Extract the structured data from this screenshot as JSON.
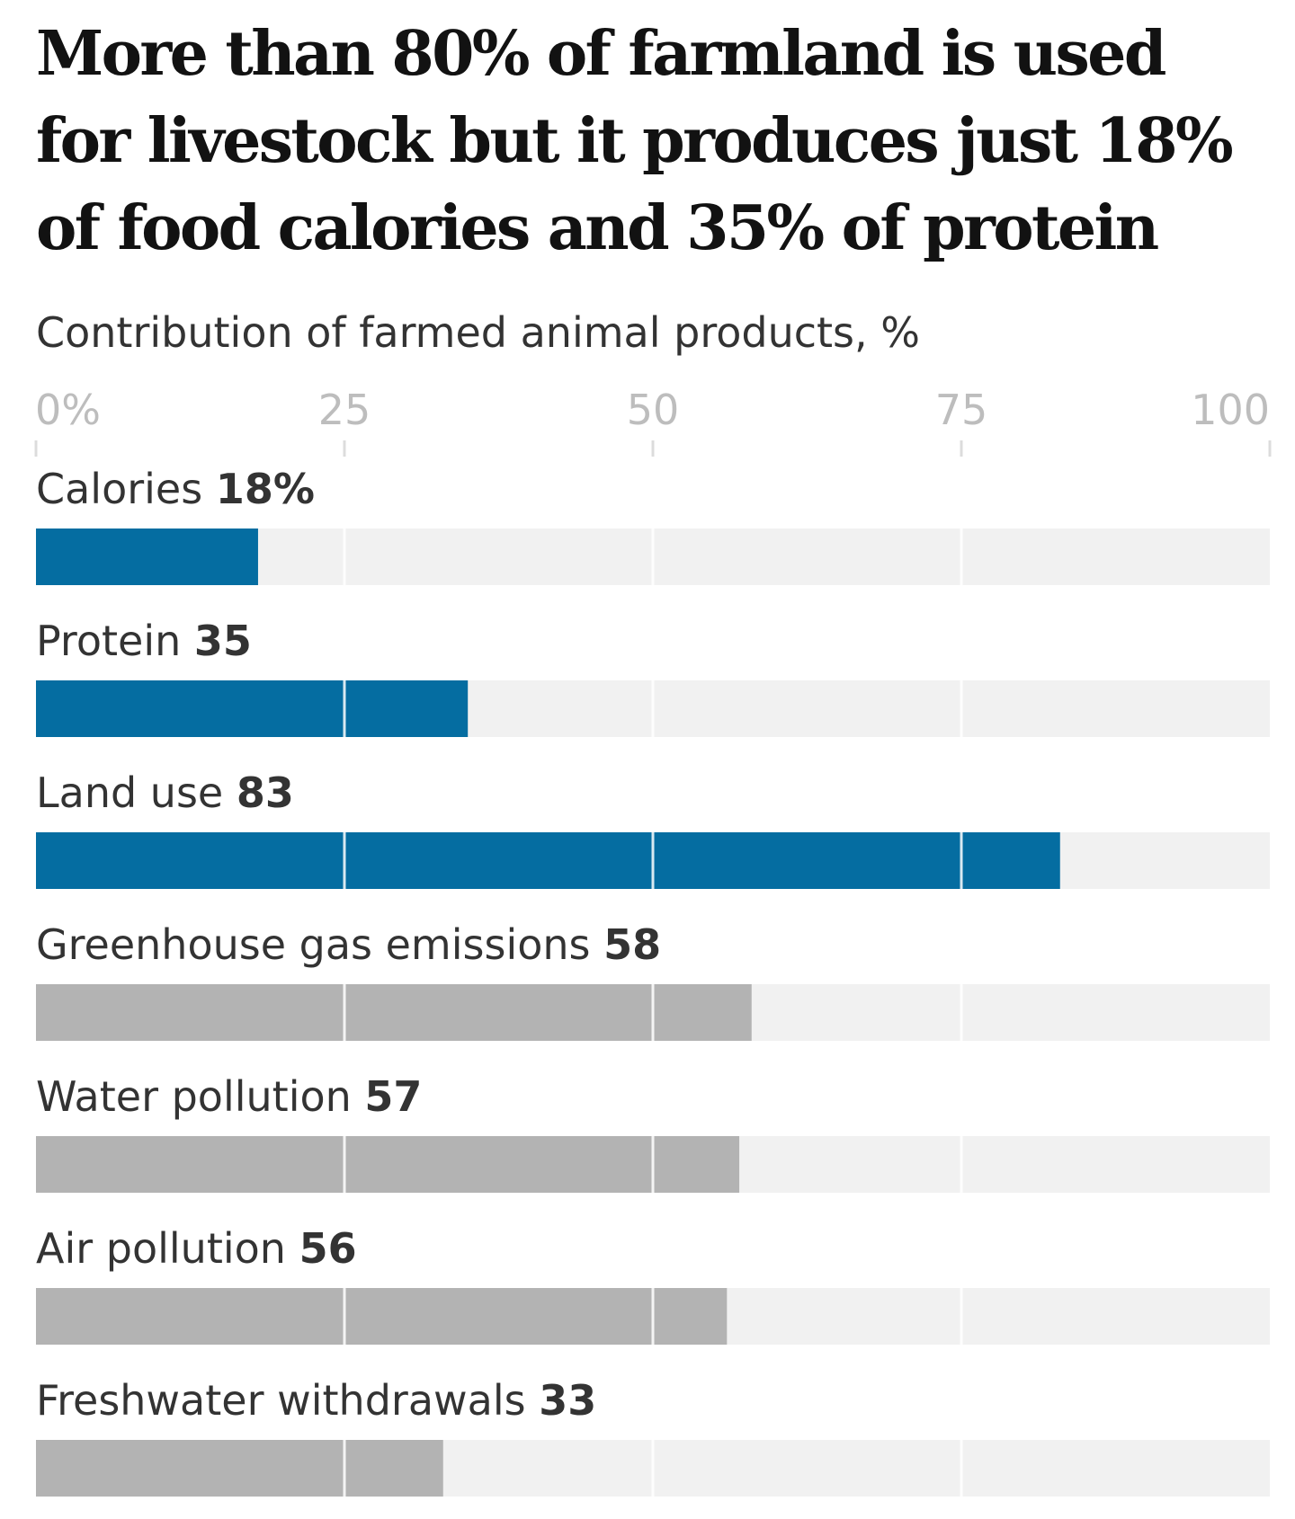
{
  "chart_data": {
    "type": "bar",
    "orientation": "horizontal",
    "title": "More than 80% of farmland is used for livestock but it produces just 18% of food calories and 35% of protein",
    "subtitle": "Contribution of farmed animal products, %",
    "xlabel": "",
    "ylabel": "",
    "xlim": [
      0,
      100
    ],
    "ticks": [
      {
        "value": 0,
        "label": "0%"
      },
      {
        "value": 25,
        "label": "25"
      },
      {
        "value": 50,
        "label": "50"
      },
      {
        "value": 75,
        "label": "75"
      },
      {
        "value": 100,
        "label": "100"
      }
    ],
    "categories": [
      {
        "label": "Calories",
        "value": 18,
        "value_label": "18%",
        "highlight": true
      },
      {
        "label": "Protein",
        "value": 35,
        "value_label": "35",
        "highlight": true
      },
      {
        "label": "Land use",
        "value": 83,
        "value_label": "83",
        "highlight": true
      },
      {
        "label": "Greenhouse gas emissions",
        "value": 58,
        "value_label": "58",
        "highlight": false
      },
      {
        "label": "Water pollution",
        "value": 57,
        "value_label": "57",
        "highlight": false
      },
      {
        "label": "Air pollution",
        "value": 56,
        "value_label": "56",
        "highlight": false
      },
      {
        "label": "Freshwater withdrawals",
        "value": 33,
        "value_label": "33",
        "highlight": false
      }
    ],
    "colors": {
      "highlight": "#056da1",
      "muted": "#b3b3b3",
      "track": "#f1f1f1",
      "tick_mark": "#dcdcdc"
    }
  }
}
